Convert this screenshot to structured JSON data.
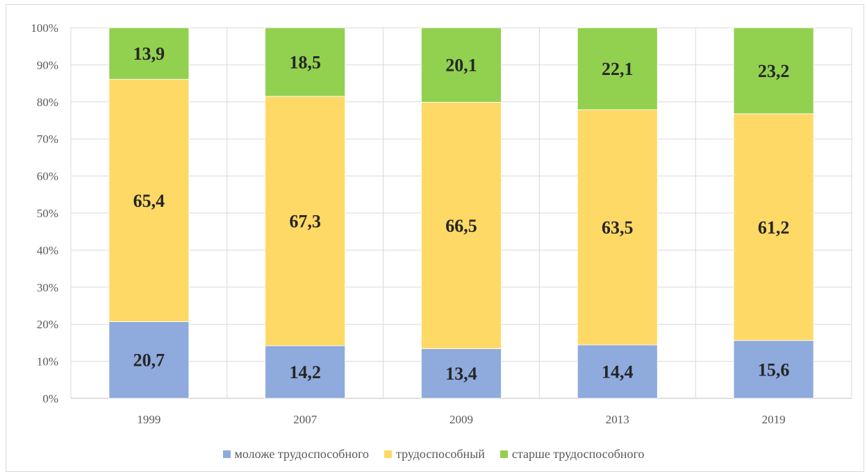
{
  "chart_data": {
    "type": "bar",
    "stacked": true,
    "title": "",
    "xlabel": "",
    "ylabel": "",
    "categories": [
      "1999",
      "2007",
      "2009",
      "2013",
      "2019"
    ],
    "y_ticks": [
      "0%",
      "10%",
      "20%",
      "30%",
      "40%",
      "50%",
      "60%",
      "70%",
      "80%",
      "90%",
      "100%"
    ],
    "ylim": [
      0,
      100
    ],
    "grid": true,
    "legend_position": "bottom",
    "series": [
      {
        "name": "моложе трудоспособного",
        "color": "#8faadc",
        "values": [
          20.7,
          14.2,
          13.4,
          14.4,
          15.6
        ],
        "labels": [
          "20,7",
          "14,2",
          "13,4",
          "14,4",
          "15,6"
        ]
      },
      {
        "name": "трудоспособный",
        "color": "#ffd966",
        "values": [
          65.4,
          67.3,
          66.5,
          63.5,
          61.2
        ],
        "labels": [
          "65,4",
          "67,3",
          "66,5",
          "63,5",
          "61,2"
        ]
      },
      {
        "name": "старше трудоспособного",
        "color": "#92d050",
        "values": [
          13.9,
          18.5,
          20.1,
          22.1,
          23.2
        ],
        "labels": [
          "13,9",
          "18,5",
          "20,1",
          "22,1",
          "23,2"
        ]
      }
    ]
  }
}
